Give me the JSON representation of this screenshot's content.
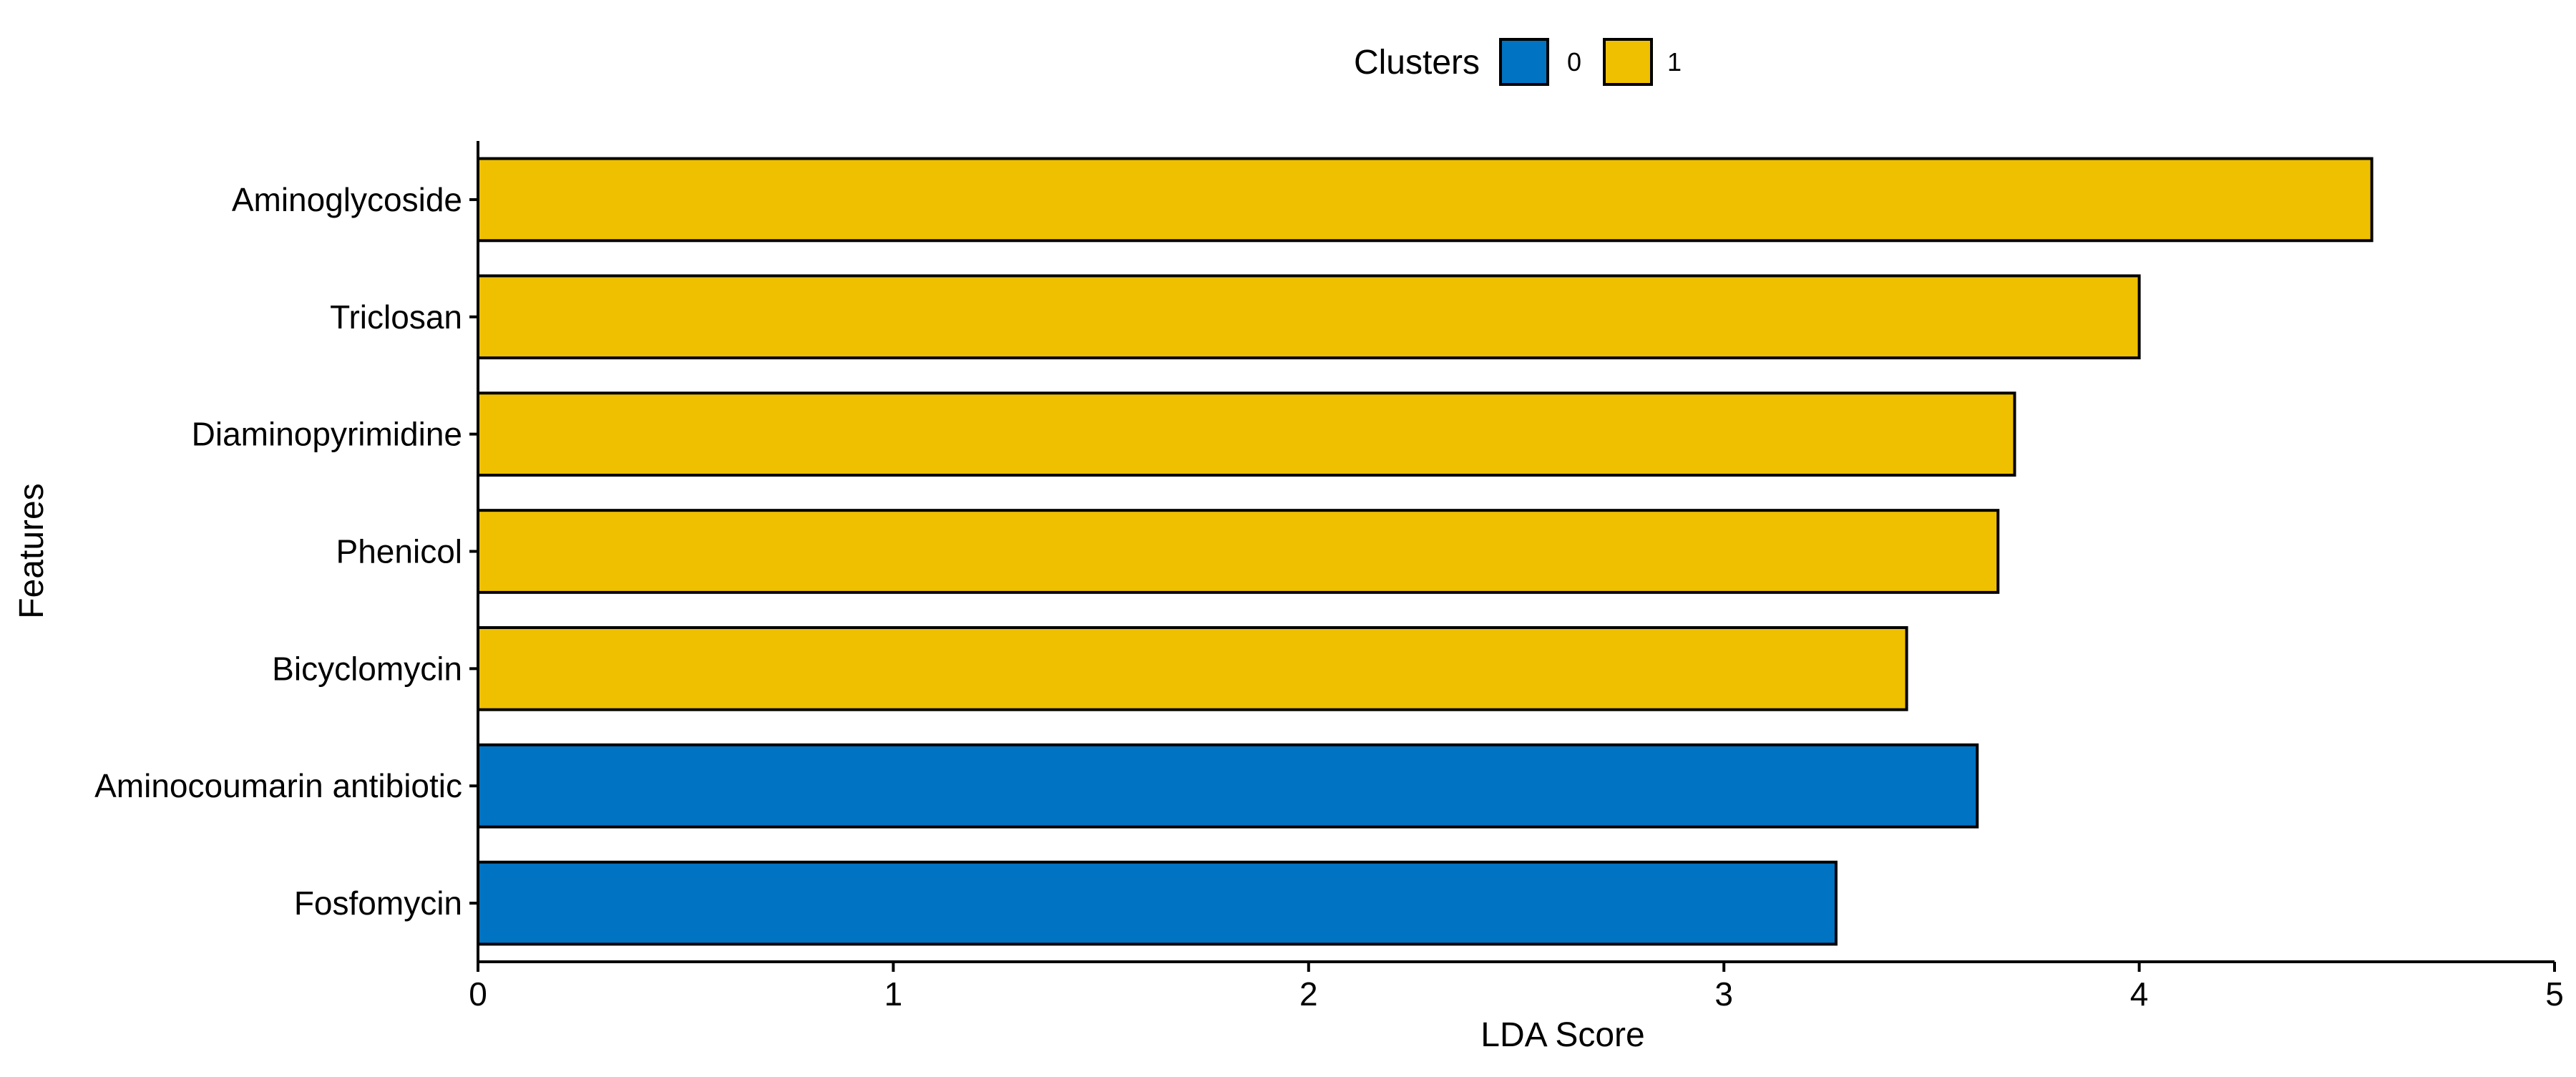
{
  "chart_data": {
    "type": "bar",
    "orientation": "horizontal",
    "xlabel": "LDA Score",
    "ylabel": "Features",
    "xlim": [
      0,
      5
    ],
    "xticks": [
      0,
      1,
      2,
      3,
      4,
      5
    ],
    "grid": false,
    "legend": {
      "title": "Clusters",
      "placement": "top-center",
      "entries": [
        {
          "label": "0",
          "color": "#0073C2"
        },
        {
          "label": "1",
          "color": "#EFC000"
        }
      ]
    },
    "categories": [
      "Aminoglycoside",
      "Triclosan",
      "Diaminopyrimidine",
      "Phenicol",
      "Bicyclomycin",
      "Aminocoumarin antibiotic",
      "Fosfomycin"
    ],
    "values": [
      4.56,
      4.0,
      3.7,
      3.66,
      3.44,
      3.61,
      3.27
    ],
    "clusters": [
      "1",
      "1",
      "1",
      "1",
      "1",
      "0",
      "0"
    ]
  }
}
